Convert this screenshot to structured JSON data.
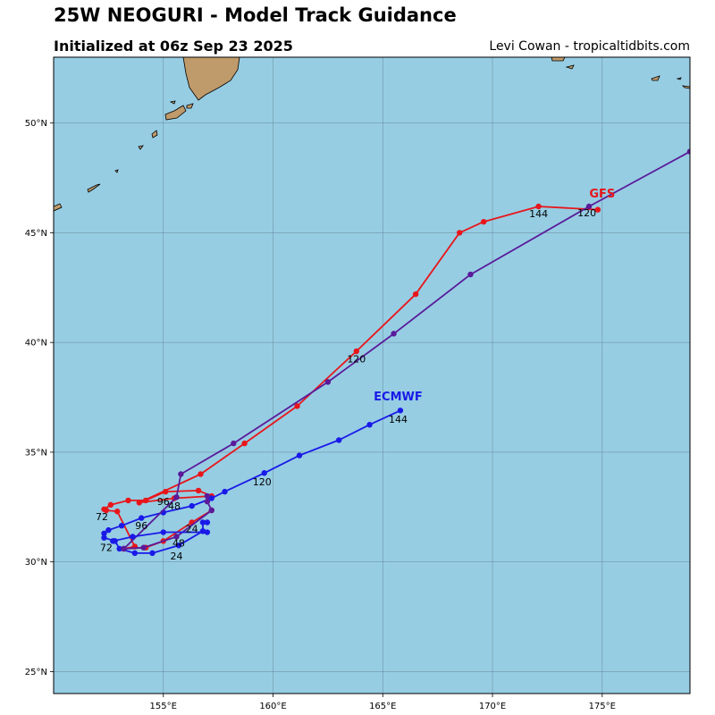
{
  "header": {
    "title": "25W NEOGURI - Model Track Guidance",
    "subtitle": "Initialized at 06z Sep 23 2025",
    "credit": "Levi Cowan - tropicaltidbits.com"
  },
  "colors": {
    "ocean": "#96cde3",
    "land": "#bf9a6a",
    "grid": "#5f7f8f",
    "gfs": "#e8161b",
    "ecmwf": "#1a1ae8",
    "third": "#5a1a9a"
  },
  "chart_data": {
    "type": "map",
    "lon_range": [
      150,
      179
    ],
    "lat_range": [
      24,
      53
    ],
    "lon_ticks": [
      155,
      160,
      165,
      170,
      175
    ],
    "lon_tick_labels": [
      "155°E",
      "160°E",
      "165°E",
      "170°E",
      "175°E"
    ],
    "lat_ticks": [
      25,
      30,
      35,
      40,
      45,
      50
    ],
    "lat_tick_labels": [
      "25°N",
      "30°N",
      "35°N",
      "40°N",
      "45°N",
      "50°N"
    ],
    "grid": true,
    "series": [
      {
        "name": "GFS",
        "color": "#e8161b",
        "points": [
          [
            157.2,
            32.35
          ],
          [
            156.3,
            31.8
          ],
          [
            155.0,
            30.95
          ],
          [
            154.2,
            30.65
          ],
          [
            153.2,
            30.6
          ],
          [
            153.7,
            30.7
          ],
          [
            152.9,
            32.3
          ],
          [
            152.4,
            32.35
          ],
          [
            152.3,
            32.4
          ],
          [
            152.6,
            32.6
          ],
          [
            153.4,
            32.8
          ],
          [
            154.2,
            32.8
          ],
          [
            155.1,
            33.2
          ],
          [
            156.6,
            33.25
          ],
          [
            157.2,
            33.0
          ],
          [
            155.5,
            32.9
          ],
          [
            153.9,
            32.7
          ],
          [
            156.7,
            34.0
          ],
          [
            158.7,
            35.4
          ],
          [
            161.1,
            37.1
          ],
          [
            163.8,
            39.6
          ],
          [
            166.5,
            42.2
          ],
          [
            168.5,
            45.0
          ],
          [
            169.6,
            45.5
          ],
          [
            172.1,
            46.2
          ],
          [
            174.8,
            46.05
          ]
        ]
      },
      {
        "name": "ECMWF",
        "color": "#1a1ae8",
        "points": [
          [
            157.0,
            31.8
          ],
          [
            156.8,
            31.8
          ],
          [
            156.8,
            31.4
          ],
          [
            155.7,
            30.75
          ],
          [
            154.5,
            30.4
          ],
          [
            153.7,
            30.4
          ],
          [
            153.0,
            30.6
          ],
          [
            152.8,
            30.95
          ],
          [
            152.3,
            31.1
          ],
          [
            152.3,
            31.3
          ],
          [
            152.5,
            31.45
          ],
          [
            153.1,
            31.65
          ],
          [
            154.0,
            32.0
          ],
          [
            155.0,
            32.25
          ],
          [
            156.3,
            32.55
          ],
          [
            157.2,
            32.9
          ],
          [
            157.8,
            33.2
          ],
          [
            159.6,
            34.05
          ],
          [
            161.2,
            34.85
          ],
          [
            163.0,
            35.55
          ],
          [
            164.4,
            36.25
          ],
          [
            165.8,
            36.9
          ]
        ]
      },
      {
        "name": "",
        "color": "#5a1a9a",
        "points": [
          [
            157.0,
            33.0
          ],
          [
            157.0,
            32.75
          ],
          [
            157.2,
            32.35
          ],
          [
            155.6,
            31.15
          ],
          [
            154.1,
            30.65
          ],
          [
            153.2,
            30.6
          ],
          [
            153.2,
            30.6
          ],
          [
            155.6,
            32.95
          ],
          [
            155.8,
            34.0
          ],
          [
            158.2,
            35.4
          ],
          [
            162.5,
            38.2
          ],
          [
            165.5,
            40.4
          ],
          [
            169.0,
            43.1
          ],
          [
            174.4,
            46.2
          ],
          [
            179.0,
            48.7
          ]
        ]
      }
    ],
    "ecmwf_extra": [
      [
        157.0,
        31.35
      ],
      [
        155.0,
        31.35
      ],
      [
        153.6,
        31.15
      ],
      [
        152.7,
        30.95
      ]
    ],
    "series_labels": [
      {
        "text": "GFS",
        "lon": 175.0,
        "lat": 46.6,
        "color": "#e8161b"
      },
      {
        "text": "ECMWF",
        "lon": 165.7,
        "lat": 37.35,
        "color": "#1a1ae8"
      }
    ],
    "point_labels": [
      {
        "text": "144",
        "lon": 172.1,
        "lat": 45.7
      },
      {
        "text": "120",
        "lon": 174.3,
        "lat": 45.75
      },
      {
        "text": "120",
        "lon": 163.8,
        "lat": 39.1
      },
      {
        "text": "144",
        "lon": 165.7,
        "lat": 36.35
      },
      {
        "text": "120",
        "lon": 159.5,
        "lat": 33.5
      },
      {
        "text": "96",
        "lon": 155.0,
        "lat": 32.6
      },
      {
        "text": "48",
        "lon": 155.5,
        "lat": 32.4
      },
      {
        "text": "72",
        "lon": 152.2,
        "lat": 31.9
      },
      {
        "text": "96",
        "lon": 154.0,
        "lat": 31.5
      },
      {
        "text": "24",
        "lon": 156.3,
        "lat": 31.35
      },
      {
        "text": "48",
        "lon": 155.7,
        "lat": 30.7
      },
      {
        "text": "72",
        "lon": 152.4,
        "lat": 30.5
      },
      {
        "text": "24",
        "lon": 155.6,
        "lat": 30.1
      }
    ]
  }
}
